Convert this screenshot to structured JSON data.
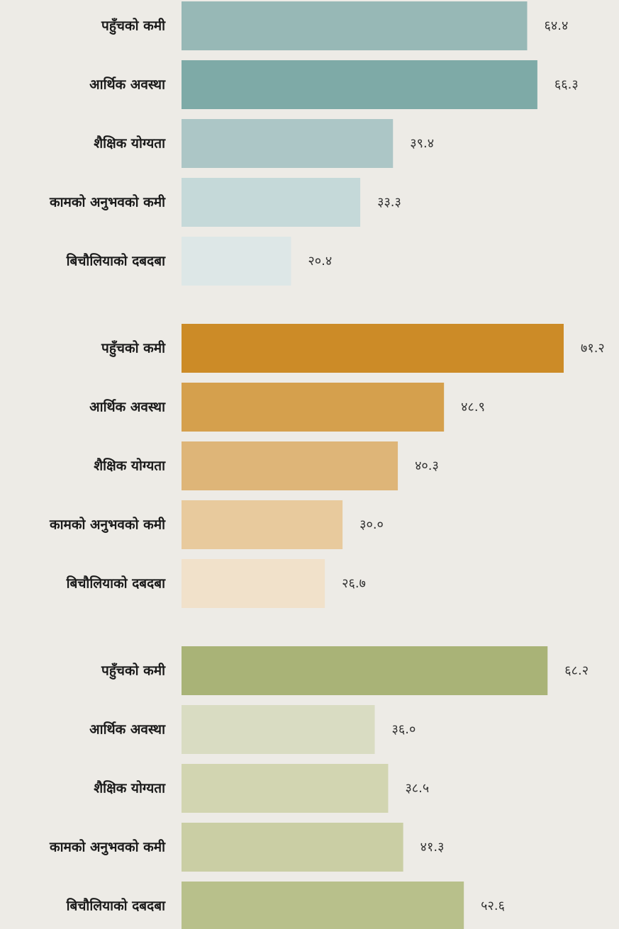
{
  "chart_data": [
    {
      "type": "bar",
      "orientation": "horizontal",
      "categories": [
        "पहुँचको कमी",
        "आर्थिक अवस्था",
        "शैक्षिक योग्यता",
        "कामको अनुभवको कमी",
        "बिचौलियाको दबदबा"
      ],
      "values": [
        64.4,
        66.3,
        39.4,
        33.3,
        20.4
      ],
      "value_labels": [
        "६४.४",
        "६६.३",
        "३९.४",
        "३३.३",
        "२०.४"
      ],
      "colors": [
        "#97b8b6",
        "#7eaaa7",
        "#acc6c6",
        "#c5d9d9",
        "#dde7e7"
      ]
    },
    {
      "type": "bar",
      "orientation": "horizontal",
      "categories": [
        "पहुँचको कमी",
        "आर्थिक अवस्था",
        "शैक्षिक योग्यता",
        "कामको अनुभवको कमी",
        "बिचौलियाको दबदबा"
      ],
      "values": [
        71.2,
        48.9,
        40.3,
        30.0,
        26.7
      ],
      "value_labels": [
        "७१.२",
        "४८.९",
        "४०.३",
        "३०.०",
        "२६.७"
      ],
      "colors": [
        "#cc8b27",
        "#d5a04d",
        "#deb578",
        "#e8ca9d",
        "#f1e1ca"
      ]
    },
    {
      "type": "bar",
      "orientation": "horizontal",
      "categories": [
        "पहुँचको कमी",
        "आर्थिक अवस्था",
        "शैक्षिक योग्यता",
        "कामको अनुभवको कमी",
        "बिचौलियाको दबदबा"
      ],
      "values": [
        68.2,
        36.0,
        38.5,
        41.3,
        52.6
      ],
      "value_labels": [
        "६८.२",
        "३६.०",
        "३८.५",
        "४१.३",
        "५२.६"
      ],
      "colors": [
        "#a9b377",
        "#d9dcc2",
        "#d2d5b1",
        "#cacea4",
        "#b8c08b"
      ]
    }
  ]
}
